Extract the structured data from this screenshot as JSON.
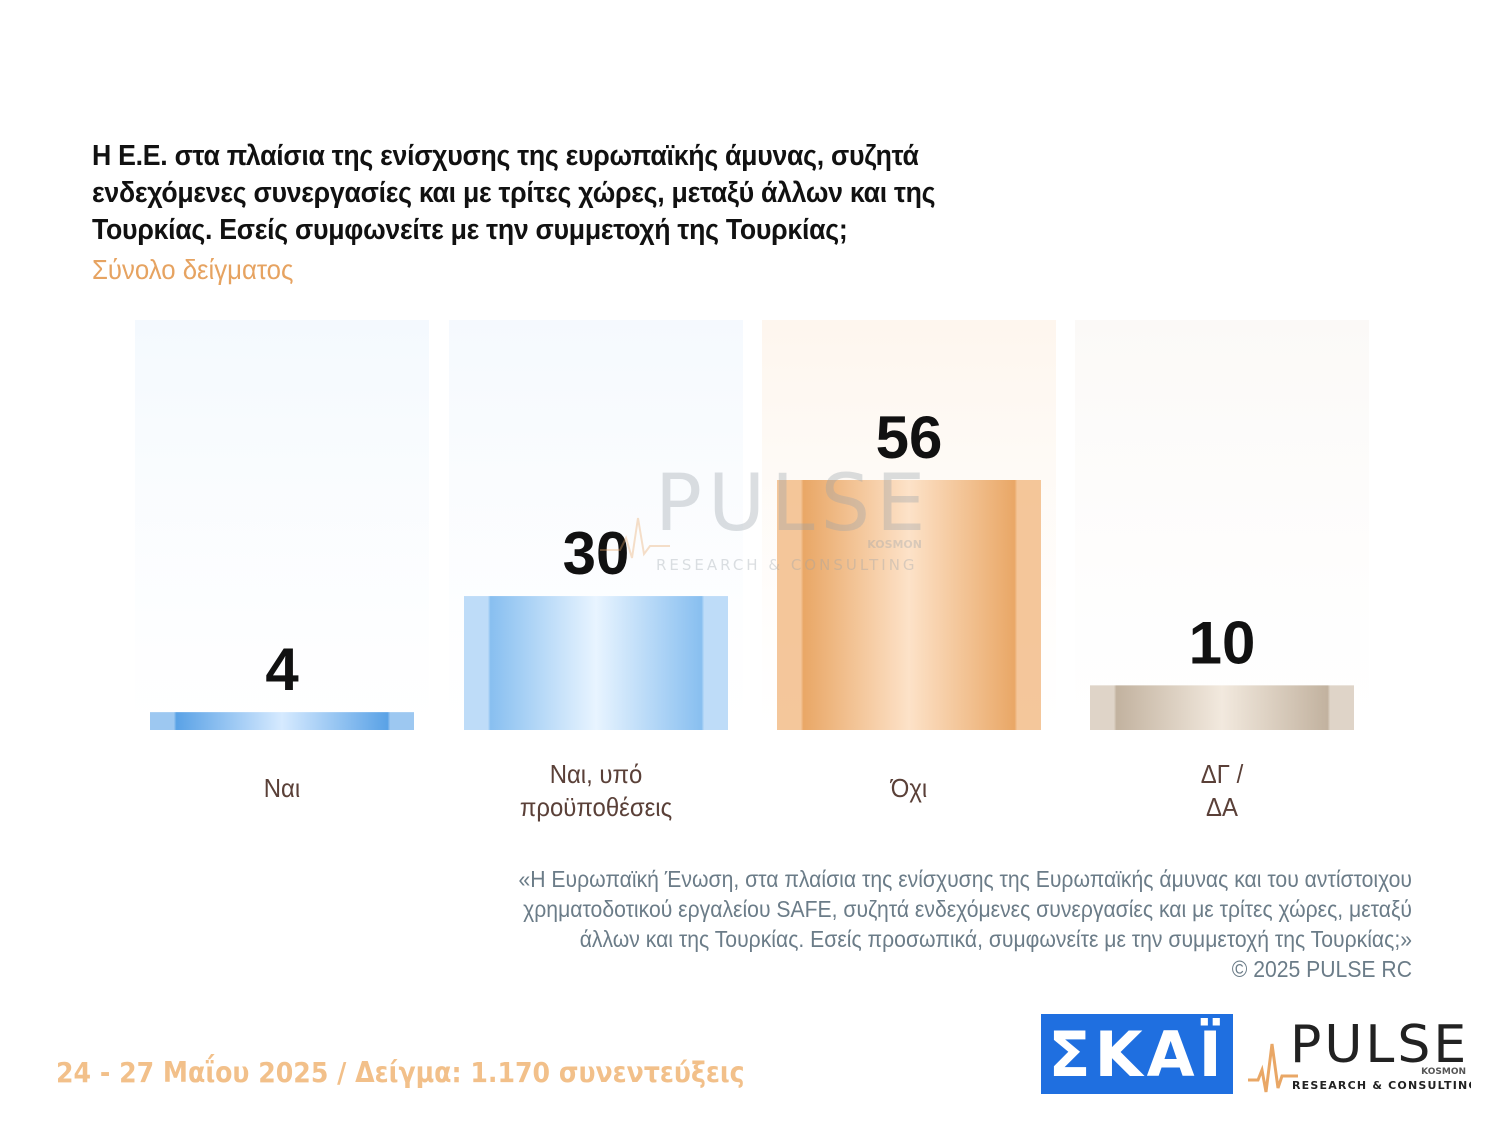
{
  "header": {
    "title": "Η Ε.Ε. στα πλαίσια της ενίσχυσης της ευρωπαϊκής άμυνας, συζητά ενδεχόμενες συνεργασίες και με τρίτες χώρες, μεταξύ άλλων και της Τουρκίας. Εσείς συμφωνείτε με την συμμετοχή της Τουρκίας;",
    "subtitle": "Σύνολο δείγματος"
  },
  "chart_data": {
    "type": "bar",
    "categories": [
      "Ναι",
      "Ναι, υπό προϋποθέσεις",
      "Όχι",
      "ΔΓ / ΔΑ"
    ],
    "category_lines": [
      [
        "Ναι"
      ],
      [
        "Ναι, υπό",
        "προϋποθέσεις"
      ],
      [
        "Όχι"
      ],
      [
        "ΔΓ /",
        "ΔΑ"
      ]
    ],
    "values": [
      4,
      30,
      56,
      10
    ],
    "data_labels": [
      "4",
      "30",
      "56",
      "10"
    ],
    "ylim": [
      0,
      100
    ],
    "grid": false,
    "legend": "none",
    "colors": {
      "bar": [
        "#7cb6ec",
        "#a9d1f5",
        "#f0b47a",
        "#d4c6b6"
      ],
      "bar_highlight": [
        "#d6eaff",
        "#e8f4ff",
        "#fde2c8",
        "#f2e9de"
      ],
      "bar_edge": [
        "#5aa2e6",
        "#88bff0",
        "#e9a766",
        "#c2b29f"
      ],
      "panel": [
        "#f4f9fe",
        "#f5f9fe",
        "#fef6ee",
        "#fbf9f7"
      ]
    }
  },
  "footnote": {
    "lines": [
      "«Η Ευρωπαϊκή Ένωση, στα πλαίσια της ενίσχυσης της Ευρωπαϊκής άμυνας και του αντίστοιχου",
      "χρηματοδοτικού εργαλείου SAFE, συζητά ενδεχόμενες συνεργασίες και με τρίτες χώρες, μεταξύ",
      "άλλων και της Τουρκίας. Εσείς προσωπικά, συμφωνείτε με την συμμετοχή της Τουρκίας;»",
      "©  2025  PULSE RC"
    ]
  },
  "footer": {
    "date_sample": "24 - 27 Μαΐου 2025  /  Δείγμα:  1.170 συνεντεύξεις"
  },
  "logos": {
    "skai": "ΣΚΑΪ",
    "pulse_name": "PULSE",
    "pulse_kosmon": "KOSMON",
    "pulse_tagline": "RESEARCH & CONSULTING"
  },
  "watermark": {
    "name": "PULSE",
    "kosmon": "KOSMON",
    "tagline": "RESEARCH & CONSULTING"
  }
}
